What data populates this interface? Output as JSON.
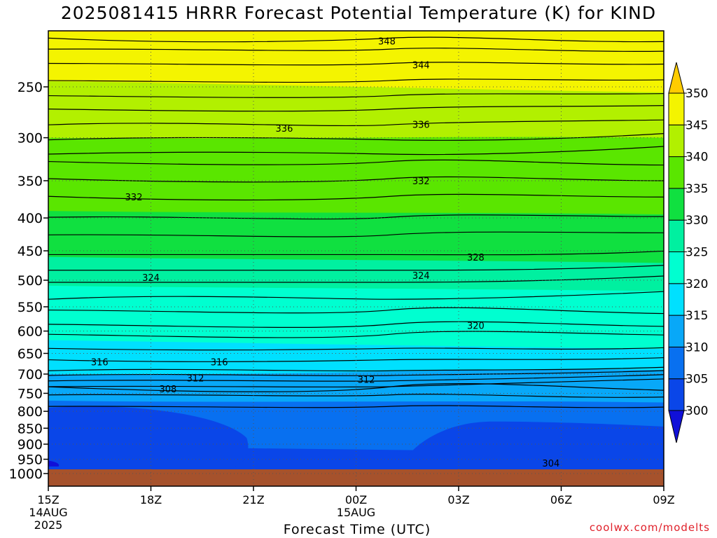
{
  "chart_data": {
    "type": "heatmap",
    "title": "2025081415 HRRR Forecast Potential Temperature (K) for KIND",
    "xlabel": "Forecast Time (UTC)",
    "ylabel": "",
    "x_ticks": [
      {
        "hour": 0,
        "label": "15Z",
        "sub": [
          "14AUG",
          "2025"
        ]
      },
      {
        "hour": 3,
        "label": "18Z",
        "sub": []
      },
      {
        "hour": 6,
        "label": "21Z",
        "sub": []
      },
      {
        "hour": 9,
        "label": "00Z",
        "sub": [
          "15AUG"
        ]
      },
      {
        "hour": 12,
        "label": "03Z",
        "sub": []
      },
      {
        "hour": 15,
        "label": "06Z",
        "sub": []
      },
      {
        "hour": 18,
        "label": "09Z",
        "sub": []
      }
    ],
    "xlim": [
      0,
      18
    ],
    "y_axis": "pressure (hPa), log scale, inverted",
    "ylim": [
      1050,
      200
    ],
    "y_ticks": [
      250,
      300,
      350,
      400,
      450,
      500,
      550,
      600,
      650,
      700,
      750,
      800,
      850,
      900,
      950,
      1000
    ],
    "colorbar": {
      "levels": [
        300,
        305,
        310,
        315,
        320,
        325,
        330,
        335,
        340,
        345,
        350
      ],
      "colors": [
        "#1010d8",
        "#0a46e8",
        "#0870f0",
        "#08a8f8",
        "#00e0ff",
        "#00ffd0",
        "#00f0a0",
        "#10e040",
        "#5ae600",
        "#b2f000",
        "#f4f400",
        "#ffcc00"
      ],
      "extend": "both"
    },
    "surface_pressure": 1000,
    "surface_color": "#a6522c",
    "contour_labels": [
      {
        "value": 348,
        "hour": 9.9,
        "p": 212
      },
      {
        "value": 344,
        "hour": 10.9,
        "p": 231
      },
      {
        "value": 336,
        "hour": 6.9,
        "p": 290
      },
      {
        "value": 336,
        "hour": 10.9,
        "p": 286
      },
      {
        "value": 332,
        "hour": 2.5,
        "p": 371
      },
      {
        "value": 332,
        "hour": 10.9,
        "p": 350
      },
      {
        "value": 328,
        "hour": 12.5,
        "p": 460
      },
      {
        "value": 324,
        "hour": 3.0,
        "p": 495
      },
      {
        "value": 324,
        "hour": 10.9,
        "p": 491
      },
      {
        "value": 320,
        "hour": 12.5,
        "p": 588
      },
      {
        "value": 316,
        "hour": 1.5,
        "p": 670
      },
      {
        "value": 316,
        "hour": 5.0,
        "p": 670
      },
      {
        "value": 312,
        "hour": 4.3,
        "p": 710
      },
      {
        "value": 312,
        "hour": 9.3,
        "p": 713
      },
      {
        "value": 308,
        "hour": 3.5,
        "p": 738
      },
      {
        "value": 304,
        "hour": 14.7,
        "p": 963
      }
    ]
  },
  "credit": "coolwx.com/modelts"
}
